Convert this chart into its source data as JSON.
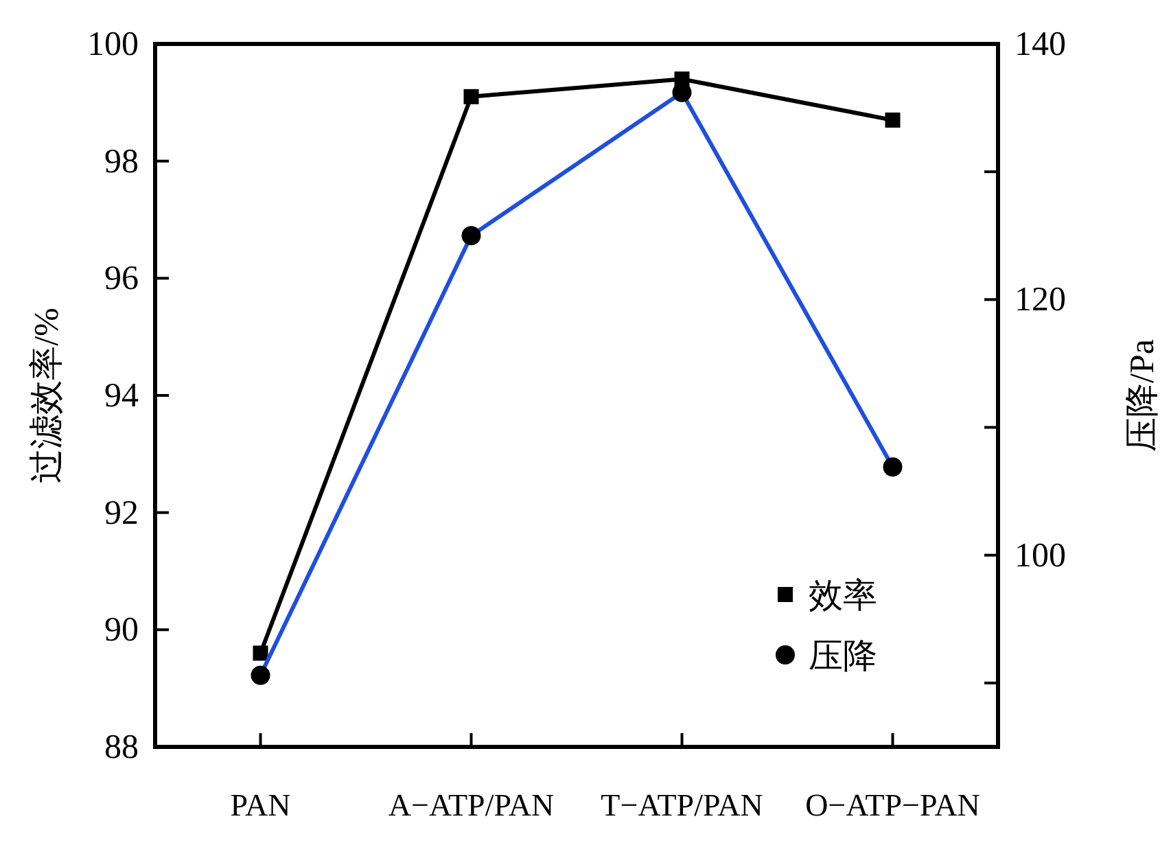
{
  "chart_data": {
    "type": "line",
    "categories": [
      "PAN",
      "A−ATP/PAN",
      "T−ATP/PAN",
      "O−ATP−PAN"
    ],
    "ylabel": "过滤效率/%",
    "y2label": "压降/Pa",
    "ylim": [
      88,
      100
    ],
    "yticks": [
      88,
      90,
      92,
      94,
      96,
      98,
      100
    ],
    "y2lim": [
      85,
      140
    ],
    "y2ticks": [
      {
        "value": 90,
        "label": null
      },
      100,
      {
        "value": 110,
        "label": null
      },
      120,
      {
        "value": 130,
        "label": null
      },
      140
    ],
    "legend": "bottom right",
    "series": [
      {
        "name": "效率",
        "color": "#000000",
        "marker": "square",
        "values": [
          89.6,
          99.1,
          99.4,
          98.7
        ]
      },
      {
        "name": "压降",
        "color": "#1f4fe0",
        "marker": "circle",
        "axis": "y2",
        "values": [
          90.6,
          125,
          136.2,
          106.9
        ]
      }
    ]
  }
}
